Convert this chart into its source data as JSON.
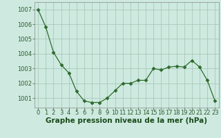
{
  "x": [
    0,
    1,
    2,
    3,
    4,
    5,
    6,
    7,
    8,
    9,
    10,
    11,
    12,
    13,
    14,
    15,
    16,
    17,
    18,
    19,
    20,
    21,
    22,
    23
  ],
  "y": [
    1007.0,
    1005.8,
    1004.1,
    1003.25,
    1002.7,
    1001.45,
    1000.8,
    1000.7,
    1000.7,
    1001.0,
    1001.5,
    1002.0,
    1002.0,
    1002.2,
    1002.2,
    1003.0,
    1002.9,
    1003.1,
    1003.15,
    1003.1,
    1003.55,
    1003.1,
    1002.2,
    1000.8
  ],
  "line_color": "#2d6a2d",
  "marker": "D",
  "marker_size": 2.5,
  "bg_color": "#ceeae0",
  "grid_color": "#a8c8b8",
  "title": "Graphe pression niveau de la mer (hPa)",
  "title_color": "#1a4a1a",
  "title_fontsize": 7.5,
  "ylabel_ticks": [
    1001,
    1002,
    1003,
    1004,
    1005,
    1006,
    1007
  ],
  "xlim": [
    -0.5,
    23.5
  ],
  "ylim": [
    1000.35,
    1007.5
  ],
  "tick_fontsize": 6.0,
  "tick_color": "#2d5a2d"
}
